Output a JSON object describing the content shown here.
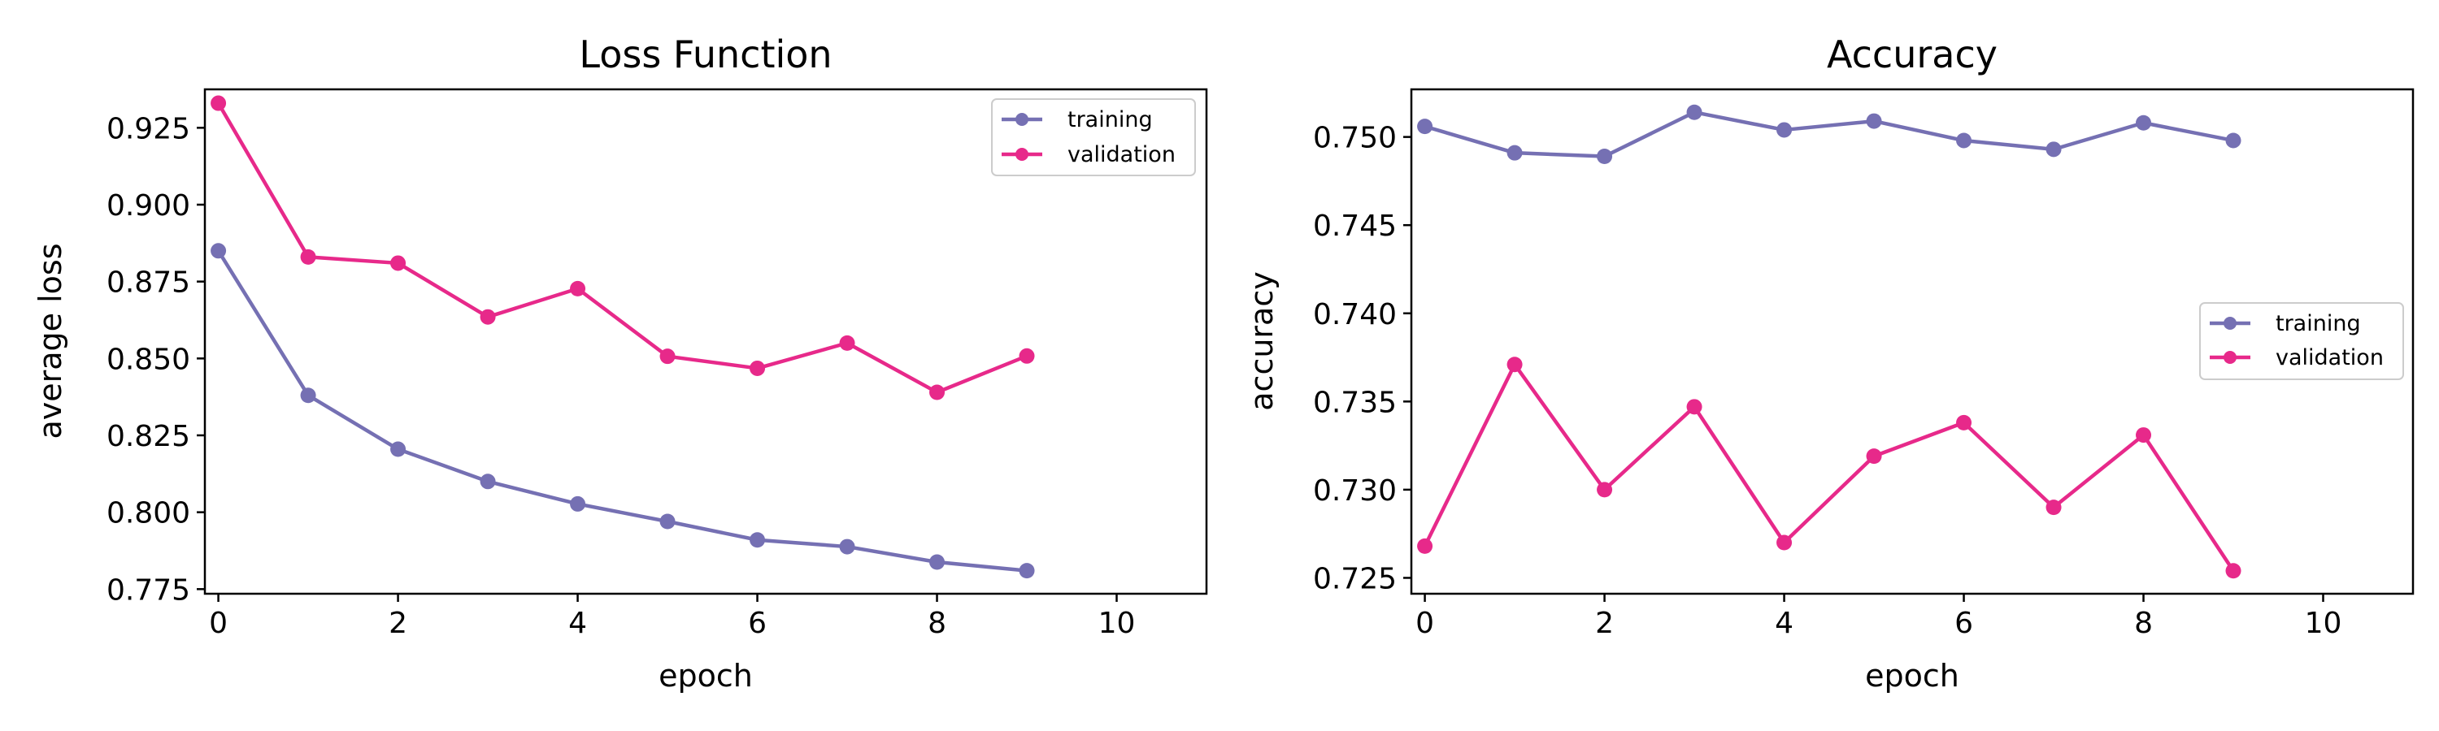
{
  "colors": {
    "training": "#7570b3",
    "validation": "#e7298a"
  },
  "chart_data": [
    {
      "type": "line",
      "title": "Loss Function",
      "xlabel": "epoch",
      "ylabel": "average loss",
      "xlim": [
        -0.15,
        11
      ],
      "ylim": [
        0.7735,
        0.9375
      ],
      "xticks": [
        0,
        2,
        4,
        6,
        8,
        10
      ],
      "yticks": [
        0.775,
        0.8,
        0.825,
        0.85,
        0.875,
        0.9,
        0.925
      ],
      "ytick_labels": [
        "0.775",
        "0.800",
        "0.825",
        "0.850",
        "0.875",
        "0.900",
        "0.925"
      ],
      "legend_position": "upper right",
      "x": [
        0,
        1,
        2,
        3,
        4,
        5,
        6,
        7,
        8,
        9
      ],
      "series": [
        {
          "name": "training",
          "values": [
            0.885,
            0.838,
            0.8205,
            0.81,
            0.8027,
            0.797,
            0.791,
            0.7888,
            0.7838,
            0.781
          ]
        },
        {
          "name": "validation",
          "values": [
            0.933,
            0.883,
            0.881,
            0.8635,
            0.8727,
            0.8507,
            0.8468,
            0.855,
            0.839,
            0.8508
          ]
        }
      ]
    },
    {
      "type": "line",
      "title": "Accuracy",
      "xlabel": "epoch",
      "ylabel": "accuracy",
      "xlim": [
        -0.15,
        11
      ],
      "ylim": [
        0.7241,
        0.7527
      ],
      "xticks": [
        0,
        2,
        4,
        6,
        8,
        10
      ],
      "yticks": [
        0.725,
        0.73,
        0.735,
        0.74,
        0.745,
        0.75
      ],
      "ytick_labels": [
        "0.725",
        "0.730",
        "0.735",
        "0.740",
        "0.745",
        "0.750"
      ],
      "legend_position": "center right",
      "x": [
        0,
        1,
        2,
        3,
        4,
        5,
        6,
        7,
        8,
        9
      ],
      "series": [
        {
          "name": "training",
          "values": [
            0.7506,
            0.7491,
            0.7489,
            0.7514,
            0.7504,
            0.7509,
            0.7498,
            0.7493,
            0.7508,
            0.7498
          ]
        },
        {
          "name": "validation",
          "values": [
            0.7268,
            0.7371,
            0.73,
            0.7347,
            0.727,
            0.7319,
            0.7338,
            0.729,
            0.7331,
            0.7254
          ]
        }
      ]
    }
  ]
}
